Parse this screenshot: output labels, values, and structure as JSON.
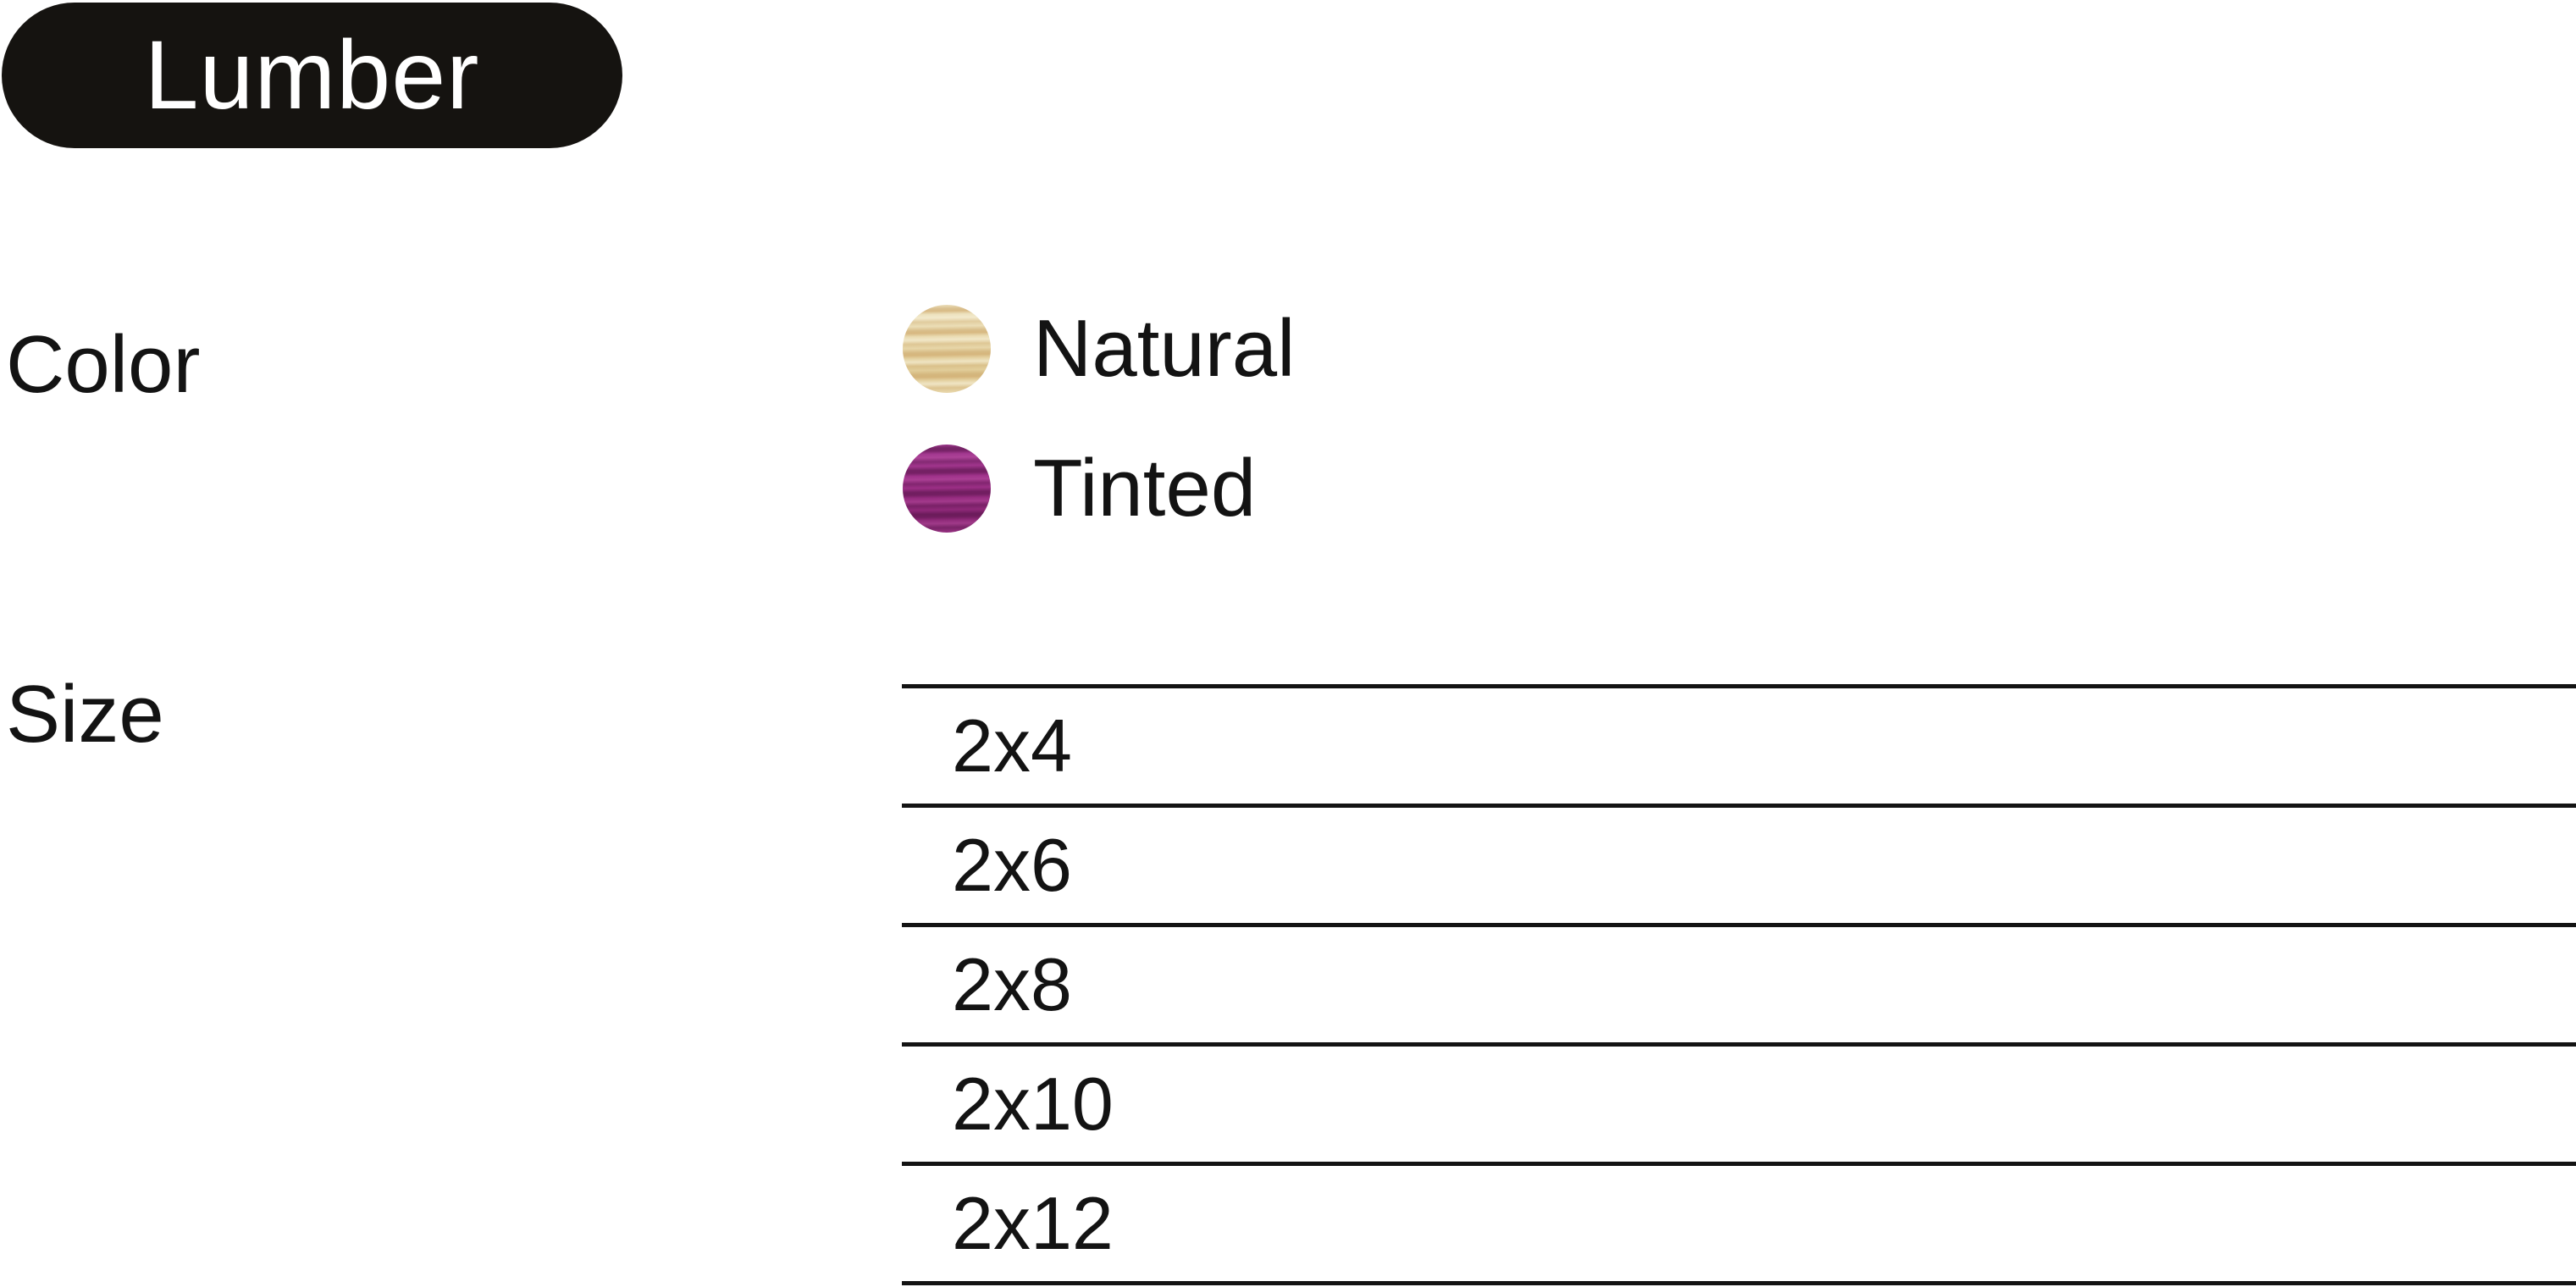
{
  "page": {
    "background_color": "#ffffff",
    "text_color": "#131313"
  },
  "header": {
    "badge_label": "Lumber",
    "badge_background": "#151310",
    "badge_text_color": "#ffffff"
  },
  "sections": {
    "color": {
      "label": "Color",
      "options": [
        {
          "label": "Natural",
          "swatch": "natural-wood-swatch",
          "swatch_base_color": "#e9d9ad",
          "swatch_stripe_color": "#cfa96c"
        },
        {
          "label": "Tinted",
          "swatch": "tinted-wood-swatch",
          "swatch_base_color": "#9e3088",
          "swatch_stripe_color": "#6f2063"
        }
      ]
    },
    "size": {
      "label": "Size",
      "rule_color": "#131313",
      "options": [
        "2x4",
        "2x6",
        "2x8",
        "2x10",
        "2x12"
      ]
    }
  }
}
